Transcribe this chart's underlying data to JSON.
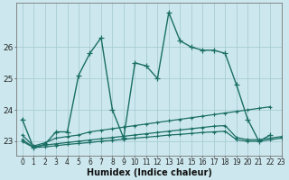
{
  "xlabel": "Humidex (Indice chaleur)",
  "bg_color": "#cce8ee",
  "grid_color": "#aaccd4",
  "line_color": "#1a6e64",
  "xlim": [
    -0.5,
    23
  ],
  "ylim": [
    22.55,
    27.4
  ],
  "yticks": [
    23,
    24,
    25,
    26
  ],
  "xticks": [
    0,
    1,
    2,
    3,
    4,
    5,
    6,
    7,
    8,
    9,
    10,
    11,
    12,
    13,
    14,
    15,
    16,
    17,
    18,
    19,
    20,
    21,
    22,
    23
  ],
  "series1_x": [
    0,
    1,
    2,
    3,
    4,
    5,
    6,
    7,
    8,
    9,
    10,
    11,
    12,
    13,
    14,
    15,
    16,
    17,
    18,
    19,
    20,
    21,
    22
  ],
  "series1_y": [
    23.7,
    22.8,
    22.9,
    23.3,
    23.3,
    25.1,
    25.8,
    26.3,
    24.0,
    23.1,
    25.5,
    25.4,
    25.0,
    27.1,
    26.2,
    26.0,
    25.9,
    25.9,
    25.8,
    24.8,
    23.7,
    23.0,
    23.2
  ],
  "series2_x": [
    0,
    1,
    2,
    3,
    4,
    5,
    6,
    7,
    8,
    9,
    10,
    11,
    12,
    13,
    14,
    15,
    16,
    17,
    18,
    19,
    20,
    21,
    22
  ],
  "series2_y": [
    23.2,
    22.85,
    22.95,
    23.1,
    23.15,
    23.2,
    23.3,
    23.35,
    23.4,
    23.45,
    23.5,
    23.55,
    23.6,
    23.65,
    23.7,
    23.75,
    23.8,
    23.85,
    23.9,
    23.95,
    24.0,
    24.05,
    24.1
  ],
  "series3_x": [
    0,
    1,
    2,
    3,
    4,
    5,
    6,
    7,
    8,
    9,
    10,
    11,
    12,
    13,
    14,
    15,
    16,
    17,
    18,
    19,
    20,
    21,
    22,
    23
  ],
  "series3_y": [
    23.05,
    22.82,
    22.88,
    22.92,
    22.96,
    23.0,
    23.04,
    23.08,
    23.12,
    23.16,
    23.2,
    23.24,
    23.28,
    23.32,
    23.36,
    23.4,
    23.44,
    23.48,
    23.5,
    23.12,
    23.05,
    23.05,
    23.1,
    23.15
  ],
  "series4_x": [
    0,
    1,
    2,
    3,
    4,
    5,
    6,
    7,
    8,
    9,
    10,
    11,
    12,
    13,
    14,
    15,
    16,
    17,
    18,
    19,
    20,
    21,
    22,
    23
  ],
  "series4_y": [
    23.0,
    22.8,
    22.82,
    22.86,
    22.9,
    22.93,
    22.96,
    23.0,
    23.03,
    23.06,
    23.1,
    23.13,
    23.16,
    23.2,
    23.22,
    23.25,
    23.28,
    23.3,
    23.32,
    23.05,
    23.0,
    23.0,
    23.05,
    23.1
  ]
}
